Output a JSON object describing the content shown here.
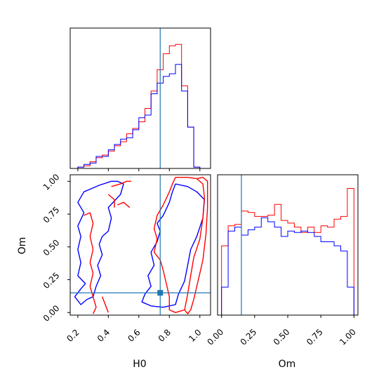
{
  "chart_data": [
    {
      "type": "histogram",
      "panel": "top-left",
      "xlim": [
        0.15,
        1.07
      ],
      "bin_edges": [
        0.2,
        0.24,
        0.28,
        0.32,
        0.36,
        0.4,
        0.44,
        0.48,
        0.52,
        0.56,
        0.6,
        0.64,
        0.68,
        0.72,
        0.76,
        0.8,
        0.84,
        0.88,
        0.92,
        0.96,
        1.0
      ],
      "series": [
        {
          "color": "#ff0000",
          "values": [
            0.01,
            0.02,
            0.05,
            0.08,
            0.1,
            0.13,
            0.17,
            0.2,
            0.26,
            0.3,
            0.35,
            0.45,
            0.58,
            0.74,
            0.86,
            0.92,
            0.93,
            0.62,
            0.31,
            0.01
          ]
        },
        {
          "color": "#0000ff",
          "values": [
            0.01,
            0.03,
            0.04,
            0.09,
            0.09,
            0.14,
            0.18,
            0.22,
            0.23,
            0.29,
            0.38,
            0.4,
            0.56,
            0.64,
            0.69,
            0.71,
            0.78,
            0.58,
            0.31,
            0.01
          ]
        }
      ],
      "truth_x": 0.74
    },
    {
      "type": "contour",
      "panel": "bottom-left",
      "xlabel": "H0",
      "ylabel": "Om",
      "xlim": [
        0.15,
        1.07
      ],
      "ylim": [
        -0.02,
        1.05
      ],
      "xticks": [
        0.2,
        0.4,
        0.6,
        0.8,
        1.0
      ],
      "xtick_labels": [
        "0.2",
        "0.4",
        "0.6",
        "0.8",
        "1.0"
      ],
      "yticks": [
        0.0,
        0.25,
        0.5,
        0.75,
        1.0
      ],
      "ytick_labels": [
        "0.00",
        "0.25",
        "0.50",
        "0.75",
        "1.00"
      ],
      "truth": {
        "x": 0.74,
        "y": 0.15
      },
      "contours": [
        {
          "color": "#0000ff",
          "points": [
            [
              0.28,
              0.94
            ],
            [
              0.34,
              0.97
            ],
            [
              0.42,
              1.0
            ],
            [
              0.46,
              1.0
            ],
            [
              0.5,
              0.98
            ],
            [
              0.48,
              0.9
            ],
            [
              0.44,
              0.85
            ],
            [
              0.4,
              0.8
            ],
            [
              0.42,
              0.72
            ],
            [
              0.4,
              0.62
            ],
            [
              0.36,
              0.58
            ],
            [
              0.34,
              0.52
            ],
            [
              0.36,
              0.44
            ],
            [
              0.33,
              0.36
            ],
            [
              0.35,
              0.28
            ],
            [
              0.32,
              0.2
            ],
            [
              0.3,
              0.12
            ],
            [
              0.26,
              0.1
            ],
            [
              0.22,
              0.06
            ],
            [
              0.18,
              0.12
            ],
            [
              0.22,
              0.18
            ],
            [
              0.25,
              0.22
            ],
            [
              0.2,
              0.28
            ],
            [
              0.22,
              0.38
            ],
            [
              0.2,
              0.48
            ],
            [
              0.22,
              0.58
            ],
            [
              0.2,
              0.66
            ],
            [
              0.24,
              0.76
            ],
            [
              0.2,
              0.84
            ],
            [
              0.24,
              0.92
            ],
            [
              0.28,
              0.94
            ]
          ]
        },
        {
          "color": "#0000ff",
          "points": [
            [
              0.84,
              0.98
            ],
            [
              0.92,
              0.96
            ],
            [
              0.98,
              0.92
            ],
            [
              1.03,
              0.86
            ],
            [
              1.02,
              0.72
            ],
            [
              0.98,
              0.58
            ],
            [
              0.94,
              0.48
            ],
            [
              0.92,
              0.36
            ],
            [
              0.9,
              0.24
            ],
            [
              0.86,
              0.14
            ],
            [
              0.84,
              0.06
            ],
            [
              0.76,
              0.04
            ],
            [
              0.68,
              0.05
            ],
            [
              0.62,
              0.08
            ],
            [
              0.64,
              0.14
            ],
            [
              0.68,
              0.2
            ],
            [
              0.66,
              0.28
            ],
            [
              0.7,
              0.36
            ],
            [
              0.68,
              0.46
            ],
            [
              0.72,
              0.54
            ],
            [
              0.74,
              0.62
            ],
            [
              0.72,
              0.68
            ],
            [
              0.76,
              0.74
            ],
            [
              0.8,
              0.84
            ],
            [
              0.82,
              0.92
            ],
            [
              0.84,
              0.98
            ]
          ]
        },
        {
          "color": "#ff0000",
          "points": [
            [
              0.84,
              1.03
            ],
            [
              0.92,
              1.03
            ],
            [
              0.98,
              1.02
            ],
            [
              1.02,
              0.98
            ],
            [
              1.03,
              0.88
            ],
            [
              1.02,
              0.72
            ],
            [
              1.0,
              0.56
            ],
            [
              0.96,
              0.42
            ],
            [
              0.94,
              0.28
            ],
            [
              0.92,
              0.14
            ],
            [
              0.9,
              0.02
            ],
            [
              0.84,
              0.0
            ],
            [
              0.8,
              0.02
            ],
            [
              0.8,
              0.12
            ],
            [
              0.78,
              0.22
            ],
            [
              0.76,
              0.32
            ],
            [
              0.74,
              0.4
            ],
            [
              0.7,
              0.46
            ],
            [
              0.72,
              0.56
            ],
            [
              0.7,
              0.64
            ],
            [
              0.72,
              0.74
            ],
            [
              0.76,
              0.82
            ],
            [
              0.8,
              0.92
            ],
            [
              0.82,
              0.98
            ],
            [
              0.84,
              1.03
            ]
          ]
        },
        {
          "color": "#ff0000",
          "points": [
            [
              0.98,
              1.02
            ],
            [
              1.02,
              1.03
            ],
            [
              1.05,
              1.0
            ],
            [
              1.05,
              0.8
            ],
            [
              1.04,
              0.6
            ],
            [
              1.02,
              0.4
            ],
            [
              1.0,
              0.3
            ],
            [
              0.98,
              0.2
            ],
            [
              0.96,
              0.1
            ],
            [
              0.94,
              0.02
            ],
            [
              0.92,
              -0.01
            ],
            [
              0.9,
              0.02
            ]
          ]
        },
        {
          "color": "#ff0000",
          "points": [
            [
              0.42,
              0.96
            ],
            [
              0.48,
              0.98
            ],
            [
              0.52,
              1.0
            ],
            [
              0.55,
              1.0
            ]
          ]
        },
        {
          "color": "#ff0000",
          "points": [
            [
              0.4,
              0.9
            ],
            [
              0.44,
              0.86
            ],
            [
              0.44,
              0.8
            ]
          ]
        },
        {
          "color": "#ff0000",
          "points": [
            [
              0.46,
              0.82
            ],
            [
              0.5,
              0.84
            ],
            [
              0.54,
              0.8
            ]
          ]
        },
        {
          "color": "#ff0000",
          "points": [
            [
              0.24,
              0.74
            ],
            [
              0.28,
              0.76
            ],
            [
              0.3,
              0.68
            ],
            [
              0.28,
              0.58
            ],
            [
              0.3,
              0.48
            ],
            [
              0.28,
              0.38
            ],
            [
              0.3,
              0.3
            ],
            [
              0.28,
              0.2
            ],
            [
              0.3,
              0.12
            ],
            [
              0.32,
              0.04
            ],
            [
              0.3,
              -0.01
            ]
          ]
        },
        {
          "color": "#ff0000",
          "points": [
            [
              0.36,
              0.12
            ],
            [
              0.38,
              0.06
            ],
            [
              0.4,
              0.0
            ]
          ]
        }
      ]
    },
    {
      "type": "histogram",
      "panel": "bottom-right",
      "xlabel": "Om",
      "xlim": [
        -0.03,
        1.03
      ],
      "xticks": [
        0.0,
        0.25,
        0.5,
        0.75,
        1.0
      ],
      "xtick_labels": [
        "0.00",
        "0.25",
        "0.50",
        "0.75",
        "1.00"
      ],
      "bin_edges": [
        0.0,
        0.05,
        0.1,
        0.15,
        0.2,
        0.25,
        0.3,
        0.35,
        0.4,
        0.45,
        0.5,
        0.55,
        0.6,
        0.65,
        0.7,
        0.75,
        0.8,
        0.85,
        0.9,
        0.95,
        1.0
      ],
      "series": [
        {
          "color": "#ff0000",
          "values": [
            0.52,
            0.67,
            0.68,
            0.78,
            0.77,
            0.74,
            0.74,
            0.75,
            0.83,
            0.71,
            0.69,
            0.66,
            0.62,
            0.66,
            0.62,
            0.67,
            0.66,
            0.72,
            0.74,
            0.95
          ]
        },
        {
          "color": "#0000ff",
          "values": [
            0.21,
            0.63,
            0.66,
            0.6,
            0.64,
            0.66,
            0.73,
            0.7,
            0.66,
            0.59,
            0.63,
            0.62,
            0.63,
            0.62,
            0.59,
            0.55,
            0.55,
            0.52,
            0.48,
            0.21
          ]
        }
      ],
      "truth_x": 0.15
    }
  ]
}
